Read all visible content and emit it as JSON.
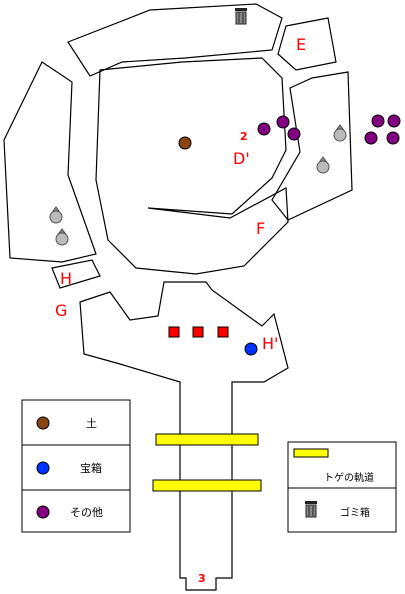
{
  "map": {
    "labels": {
      "e": "E",
      "d_prime": "D'",
      "two": "2",
      "f": "F",
      "h": "H",
      "g": "G",
      "h_prime": "H'",
      "three": "3"
    },
    "colors": {
      "outline": "#000000",
      "label_red": "#ff0000",
      "dirt": "#8b4513",
      "treasure": "#0033ff",
      "other": "#800080",
      "spike": "#ff0000",
      "rail": "#ffff00",
      "sack": "#bbbbbb"
    }
  },
  "legend_left": {
    "items": [
      {
        "icon": "brown-circle-icon",
        "label": "土"
      },
      {
        "icon": "blue-circle-icon",
        "label": "宝箱"
      },
      {
        "icon": "purple-circle-icon",
        "label": "その他"
      }
    ]
  },
  "legend_right": {
    "items": [
      {
        "icon": "yellow-rail-icon",
        "label": "トゲの軌道"
      },
      {
        "icon": "trash-can-icon",
        "label": "ゴミ箱"
      }
    ]
  }
}
